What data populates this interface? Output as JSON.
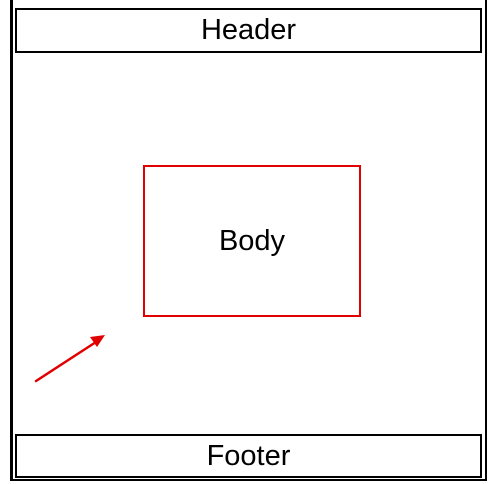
{
  "diagram": {
    "header_label": "Header",
    "body_label": "Body",
    "footer_label": "Footer"
  },
  "colors": {
    "frame": "#000000",
    "accent": "#e00000"
  },
  "icons": {
    "pointer": "arrow-icon"
  }
}
